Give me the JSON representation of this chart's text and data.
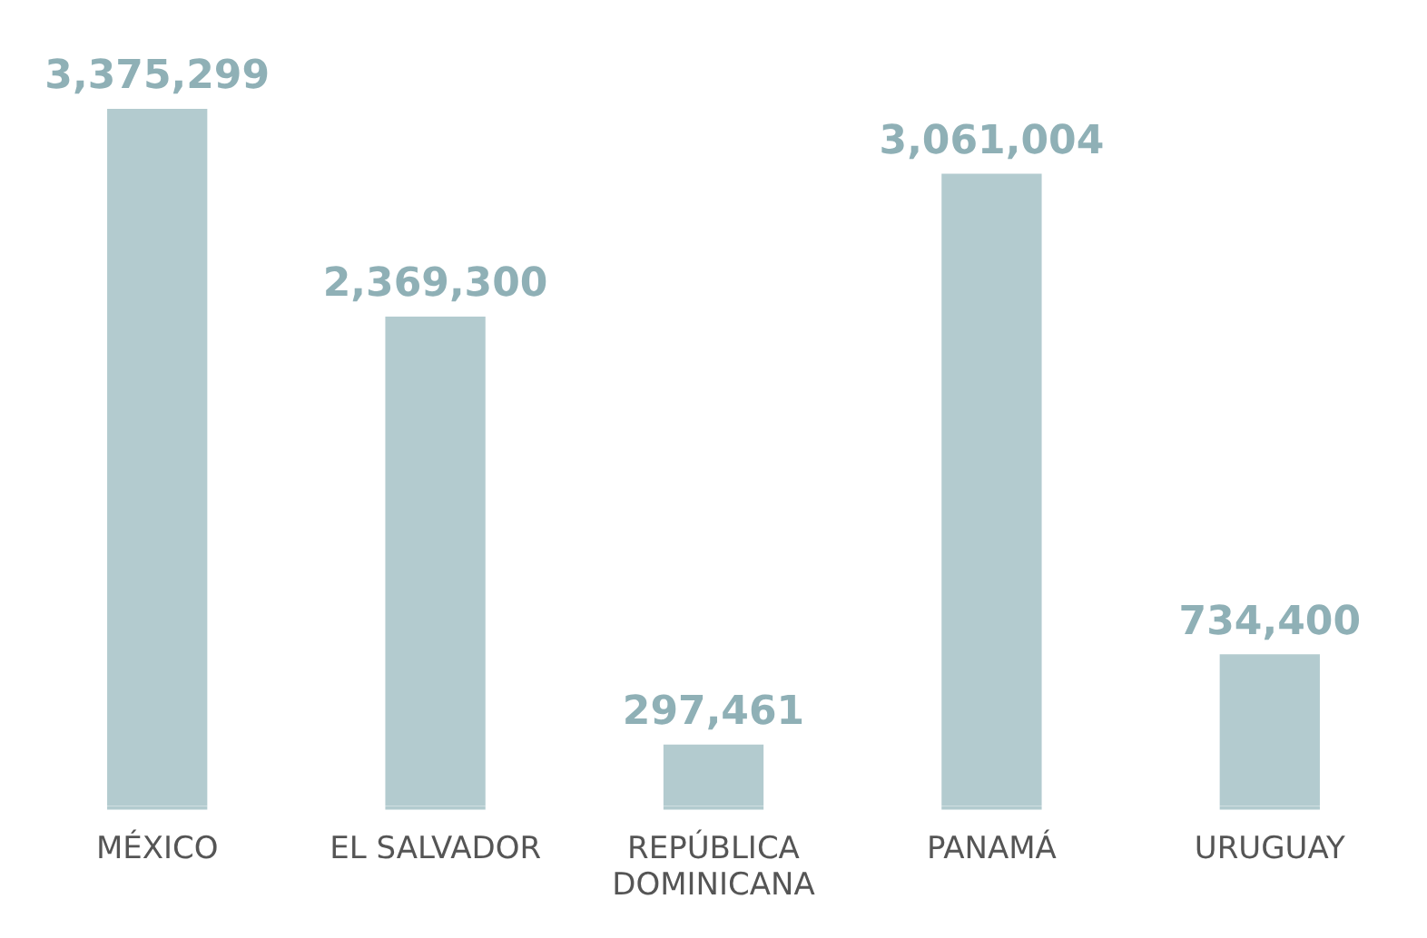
{
  "chart_data": {
    "type": "bar",
    "categories": [
      "MÉXICO",
      "EL SALVADOR",
      "REPÚBLICA DOMINICANA",
      "PANAMÁ",
      "URUGUAY"
    ],
    "values": [
      3375299,
      2369300,
      297461,
      3061004,
      734400
    ],
    "value_labels": [
      "3,375,299",
      "2,369,300",
      "297,461",
      "3,061,004",
      "734,400"
    ],
    "color": "#b3cbcf",
    "grid": false,
    "legend": false
  }
}
